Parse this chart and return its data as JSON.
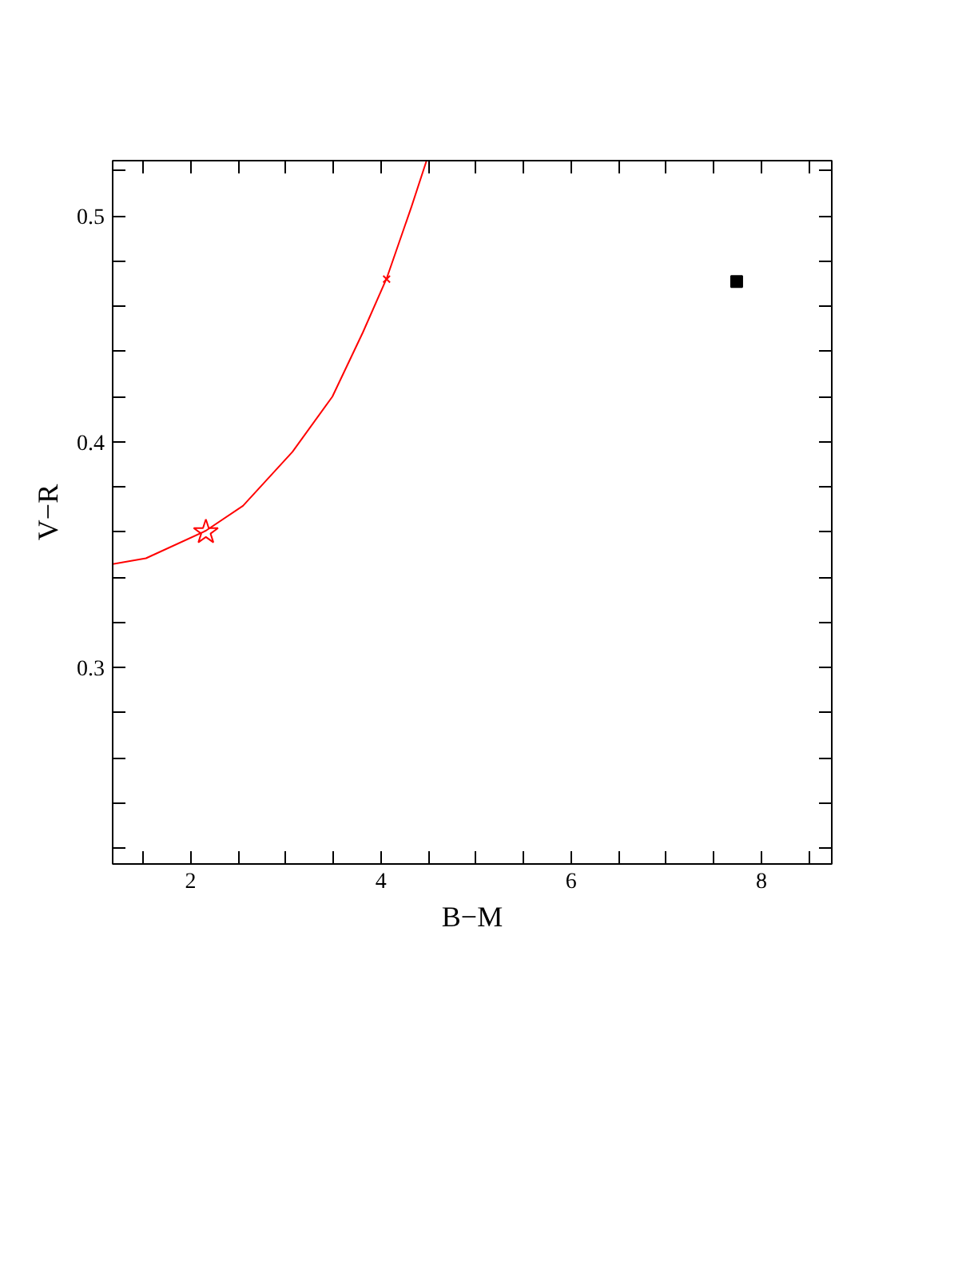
{
  "chart_data": {
    "type": "line",
    "xlabel": "B−M",
    "ylabel": "V−R",
    "xlim": [
      1.18,
      8.74
    ],
    "ylim": [
      0.213,
      0.5245
    ],
    "xticks": [
      {
        "value": 1.5,
        "label": null
      },
      2,
      {
        "value": 2.5,
        "label": null
      },
      {
        "value": 3,
        "label": null
      },
      {
        "value": 3.5,
        "label": null
      },
      4,
      {
        "value": 4.5,
        "label": null
      },
      {
        "value": 5,
        "label": null
      },
      {
        "value": 5.5,
        "label": null
      },
      6,
      {
        "value": 6.5,
        "label": null
      },
      {
        "value": 7,
        "label": null
      },
      {
        "value": 7.5,
        "label": null
      },
      8,
      {
        "value": 8.5,
        "label": null
      }
    ],
    "yticks": [
      {
        "value": 0.22,
        "label": null
      },
      {
        "value": 0.24,
        "label": null
      },
      {
        "value": 0.26,
        "label": null
      },
      {
        "value": 0.28,
        "label": null
      },
      0.3,
      {
        "value": 0.32,
        "label": null
      },
      {
        "value": 0.34,
        "label": null
      },
      {
        "value": 0.36,
        "label": null
      },
      {
        "value": 0.38,
        "label": null
      },
      0.4,
      {
        "value": 0.42,
        "label": null
      },
      {
        "value": 0.44,
        "label": null
      },
      {
        "value": 0.46,
        "label": null
      },
      {
        "value": 0.48,
        "label": null
      },
      0.5,
      {
        "value": 0.52,
        "label": null
      }
    ],
    "grid": false,
    "series": [
      {
        "color": "#ff0000",
        "marker": "none",
        "x": [
          1.18,
          1.53,
          2.16,
          2.55,
          3.07,
          3.49,
          3.81,
          4.06,
          4.32,
          4.48
        ],
        "values": [
          0.3458,
          0.3484,
          0.3606,
          0.3716,
          0.3955,
          0.42,
          0.4484,
          0.4723,
          0.5039,
          0.5245
        ]
      },
      {
        "type": "scatter",
        "color": "#ff0000",
        "marker": "star",
        "x": [
          2.16
        ],
        "values": [
          0.36
        ]
      },
      {
        "type": "scatter",
        "color": "#ff0000",
        "marker": "cross",
        "x": [
          4.06
        ],
        "values": [
          0.472
        ]
      },
      {
        "type": "scatter",
        "color": "#000000",
        "marker": "square",
        "x": [
          7.74
        ],
        "values": [
          0.471
        ]
      }
    ]
  }
}
